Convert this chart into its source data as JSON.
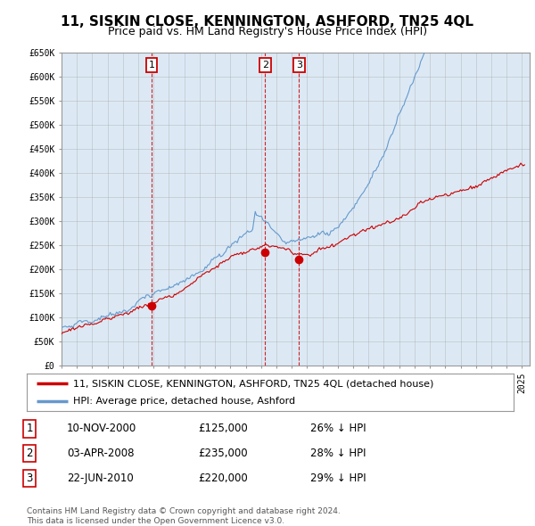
{
  "title": "11, SISKIN CLOSE, KENNINGTON, ASHFORD, TN25 4QL",
  "subtitle": "Price paid vs. HM Land Registry's House Price Index (HPI)",
  "ylabel_ticks": [
    "£0",
    "£50K",
    "£100K",
    "£150K",
    "£200K",
    "£250K",
    "£300K",
    "£350K",
    "£400K",
    "£450K",
    "£500K",
    "£550K",
    "£600K",
    "£650K"
  ],
  "ytick_values": [
    0,
    50000,
    100000,
    150000,
    200000,
    250000,
    300000,
    350000,
    400000,
    450000,
    500000,
    550000,
    600000,
    650000
  ],
  "xmin": 1995.0,
  "xmax": 2025.5,
  "ymin": 0,
  "ymax": 650000,
  "transactions": [
    {
      "label": "1",
      "date": "10-NOV-2000",
      "x": 2000.87,
      "price": 125000,
      "pct": "26%",
      "dir": "↓"
    },
    {
      "label": "2",
      "date": "03-APR-2008",
      "x": 2008.26,
      "price": 235000,
      "pct": "28%",
      "dir": "↓"
    },
    {
      "label": "3",
      "date": "22-JUN-2010",
      "x": 2010.48,
      "price": 220000,
      "pct": "29%",
      "dir": "↓"
    }
  ],
  "legend_property_label": "11, SISKIN CLOSE, KENNINGTON, ASHFORD, TN25 4QL (detached house)",
  "legend_hpi_label": "HPI: Average price, detached house, Ashford",
  "property_color": "#cc0000",
  "hpi_color": "#6699cc",
  "vline_color": "#cc0000",
  "chart_bg_color": "#dce9f5",
  "fig_bg_color": "#ffffff",
  "grid_color": "#aaaaaa",
  "footer_text": "Contains HM Land Registry data © Crown copyright and database right 2024.\nThis data is licensed under the Open Government Licence v3.0.",
  "title_fontsize": 11,
  "subtitle_fontsize": 9,
  "tick_fontsize": 7,
  "legend_fontsize": 8,
  "table_fontsize": 8.5
}
